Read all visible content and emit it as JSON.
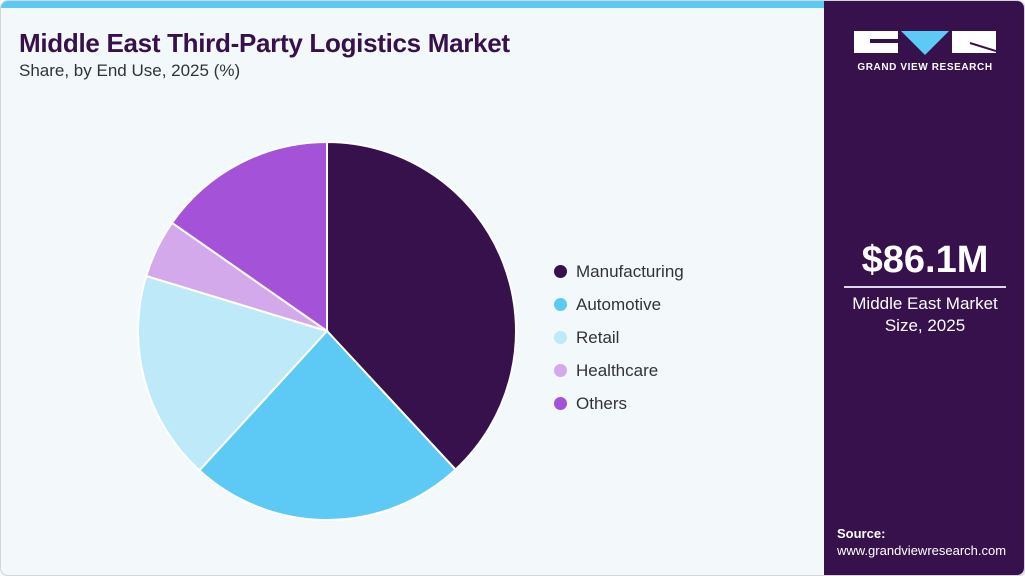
{
  "header": {
    "title": "Middle East Third-Party Logistics Market",
    "subtitle": "Share, by End Use, 2025 (%)"
  },
  "brand": {
    "name": "GRAND VIEW RESEARCH",
    "logo_icon": "gvr-logo-icon",
    "colors": {
      "primary": "#37114b",
      "accent": "#5ccaf5",
      "background": "#f3f8fb"
    }
  },
  "side_panel": {
    "market_value": "$86.1M",
    "market_desc_line1": "Middle East Market",
    "market_desc_line2": "Size, 2025",
    "source_label": "Source:",
    "source_url": "www.grandviewresearch.com"
  },
  "legend": {
    "items": [
      {
        "label": "Manufacturing",
        "color": "#37114b"
      },
      {
        "label": "Automotive",
        "color": "#5ccaf5"
      },
      {
        "label": "Retail",
        "color": "#bde9f9"
      },
      {
        "label": "Healthcare",
        "color": "#d4a9ec"
      },
      {
        "label": "Others",
        "color": "#a452d7"
      }
    ]
  },
  "chart_data": {
    "type": "pie",
    "title": "Middle East Third-Party Logistics Market",
    "subtitle": "Share, by End Use, 2025 (%)",
    "categories": [
      "Manufacturing",
      "Automotive",
      "Retail",
      "Healthcare",
      "Others"
    ],
    "values": [
      38.1,
      23.7,
      17.9,
      5.0,
      15.3
    ],
    "colors": [
      "#37114b",
      "#5ccaf5",
      "#bde9f9",
      "#d4a9ec",
      "#a452d7"
    ],
    "start_angle_deg": 0,
    "direction": "clockwise",
    "legend_position": "right",
    "data_labels": false
  }
}
